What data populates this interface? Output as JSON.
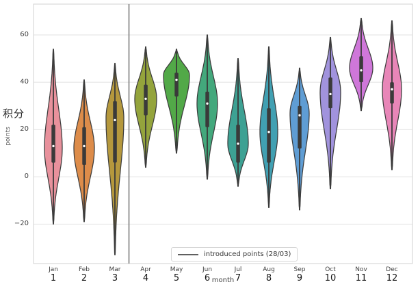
{
  "colors": {
    "grid": "#e2e2e2",
    "plot_border": "#d9d9d9",
    "separator": "#8c8c8c",
    "violin_stroke": "#3c3c3c",
    "inner_box": "#3a3a3a",
    "median_dot": "#ffffff",
    "background": "#ffffff"
  },
  "chart_data": {
    "type": "violin",
    "title": "",
    "xlabel": "month",
    "ylabel_primary": "积分",
    "ylabel_secondary": "points",
    "ylim": [
      -36.7,
      73
    ],
    "yticks": [
      -20,
      0,
      20,
      40,
      60
    ],
    "ytick_labels": [
      "−20",
      "0",
      "20",
      "40",
      "60"
    ],
    "grid": true,
    "legend_label": "introduced points (28/03)",
    "legend_position": "lower center",
    "separator_after_category": "Mar",
    "categories": [
      "Jan",
      "Feb",
      "Mar",
      "Apr",
      "May",
      "Jun",
      "Jul",
      "Aug",
      "Sep",
      "Oct",
      "Nov",
      "Dec"
    ],
    "category_numbers": [
      "1",
      "2",
      "3",
      "4",
      "5",
      "6",
      "7",
      "8",
      "9",
      "10",
      "11",
      "12"
    ],
    "series": [
      {
        "month": "Jan",
        "num": "1",
        "color": "#e8919c",
        "min": -20,
        "max": 54,
        "q1": 6,
        "median": 13,
        "q3": 22,
        "mode": 12,
        "halfwidth": 13
      },
      {
        "month": "Feb",
        "num": "2",
        "color": "#dd8c4a",
        "min": -19,
        "max": 41,
        "q1": 5,
        "median": 13,
        "q3": 21,
        "mode": 12,
        "halfwidth": 15
      },
      {
        "month": "Mar",
        "num": "3",
        "color": "#b5983d",
        "min": -33,
        "max": 48,
        "q1": 6,
        "median": 24,
        "q3": 32,
        "mode": 25,
        "halfwidth": 13
      },
      {
        "month": "Apr",
        "num": "4",
        "color": "#94a43c",
        "min": 4,
        "max": 55,
        "q1": 26,
        "median": 33,
        "q3": 39,
        "mode": 33,
        "halfwidth": 16
      },
      {
        "month": "May",
        "num": "5",
        "color": "#52a948",
        "min": 10,
        "max": 54,
        "q1": 34,
        "median": 41,
        "q3": 44,
        "mode": 43,
        "halfwidth": 19
      },
      {
        "month": "Jun",
        "num": "6",
        "color": "#43a87c",
        "min": -1,
        "max": 60,
        "q1": 21,
        "median": 31,
        "q3": 36,
        "mode": 31,
        "halfwidth": 15
      },
      {
        "month": "Jul",
        "num": "7",
        "color": "#3da193",
        "min": -4,
        "max": 50,
        "q1": 6,
        "median": 14,
        "q3": 22,
        "mode": 14,
        "halfwidth": 15
      },
      {
        "month": "Aug",
        "num": "8",
        "color": "#41a0b2",
        "min": -13,
        "max": 55,
        "q1": 6,
        "median": 19,
        "q3": 29,
        "mode": 19,
        "halfwidth": 13
      },
      {
        "month": "Sep",
        "num": "9",
        "color": "#5f9dd4",
        "min": -14,
        "max": 46,
        "q1": 12,
        "median": 26,
        "q3": 30,
        "mode": 27,
        "halfwidth": 14
      },
      {
        "month": "Oct",
        "num": "10",
        "color": "#a193dd",
        "min": -5,
        "max": 59,
        "q1": 29,
        "median": 35,
        "q3": 42,
        "mode": 36,
        "halfwidth": 15
      },
      {
        "month": "Nov",
        "num": "11",
        "color": "#cf77d9",
        "min": 28,
        "max": 67,
        "q1": 40,
        "median": 45,
        "q3": 51,
        "mode": 46,
        "halfwidth": 17
      },
      {
        "month": "Dec",
        "num": "12",
        "color": "#e886b8",
        "min": 3,
        "max": 66,
        "q1": 31,
        "median": 37,
        "q3": 40,
        "mode": 37,
        "halfwidth": 14
      }
    ]
  }
}
